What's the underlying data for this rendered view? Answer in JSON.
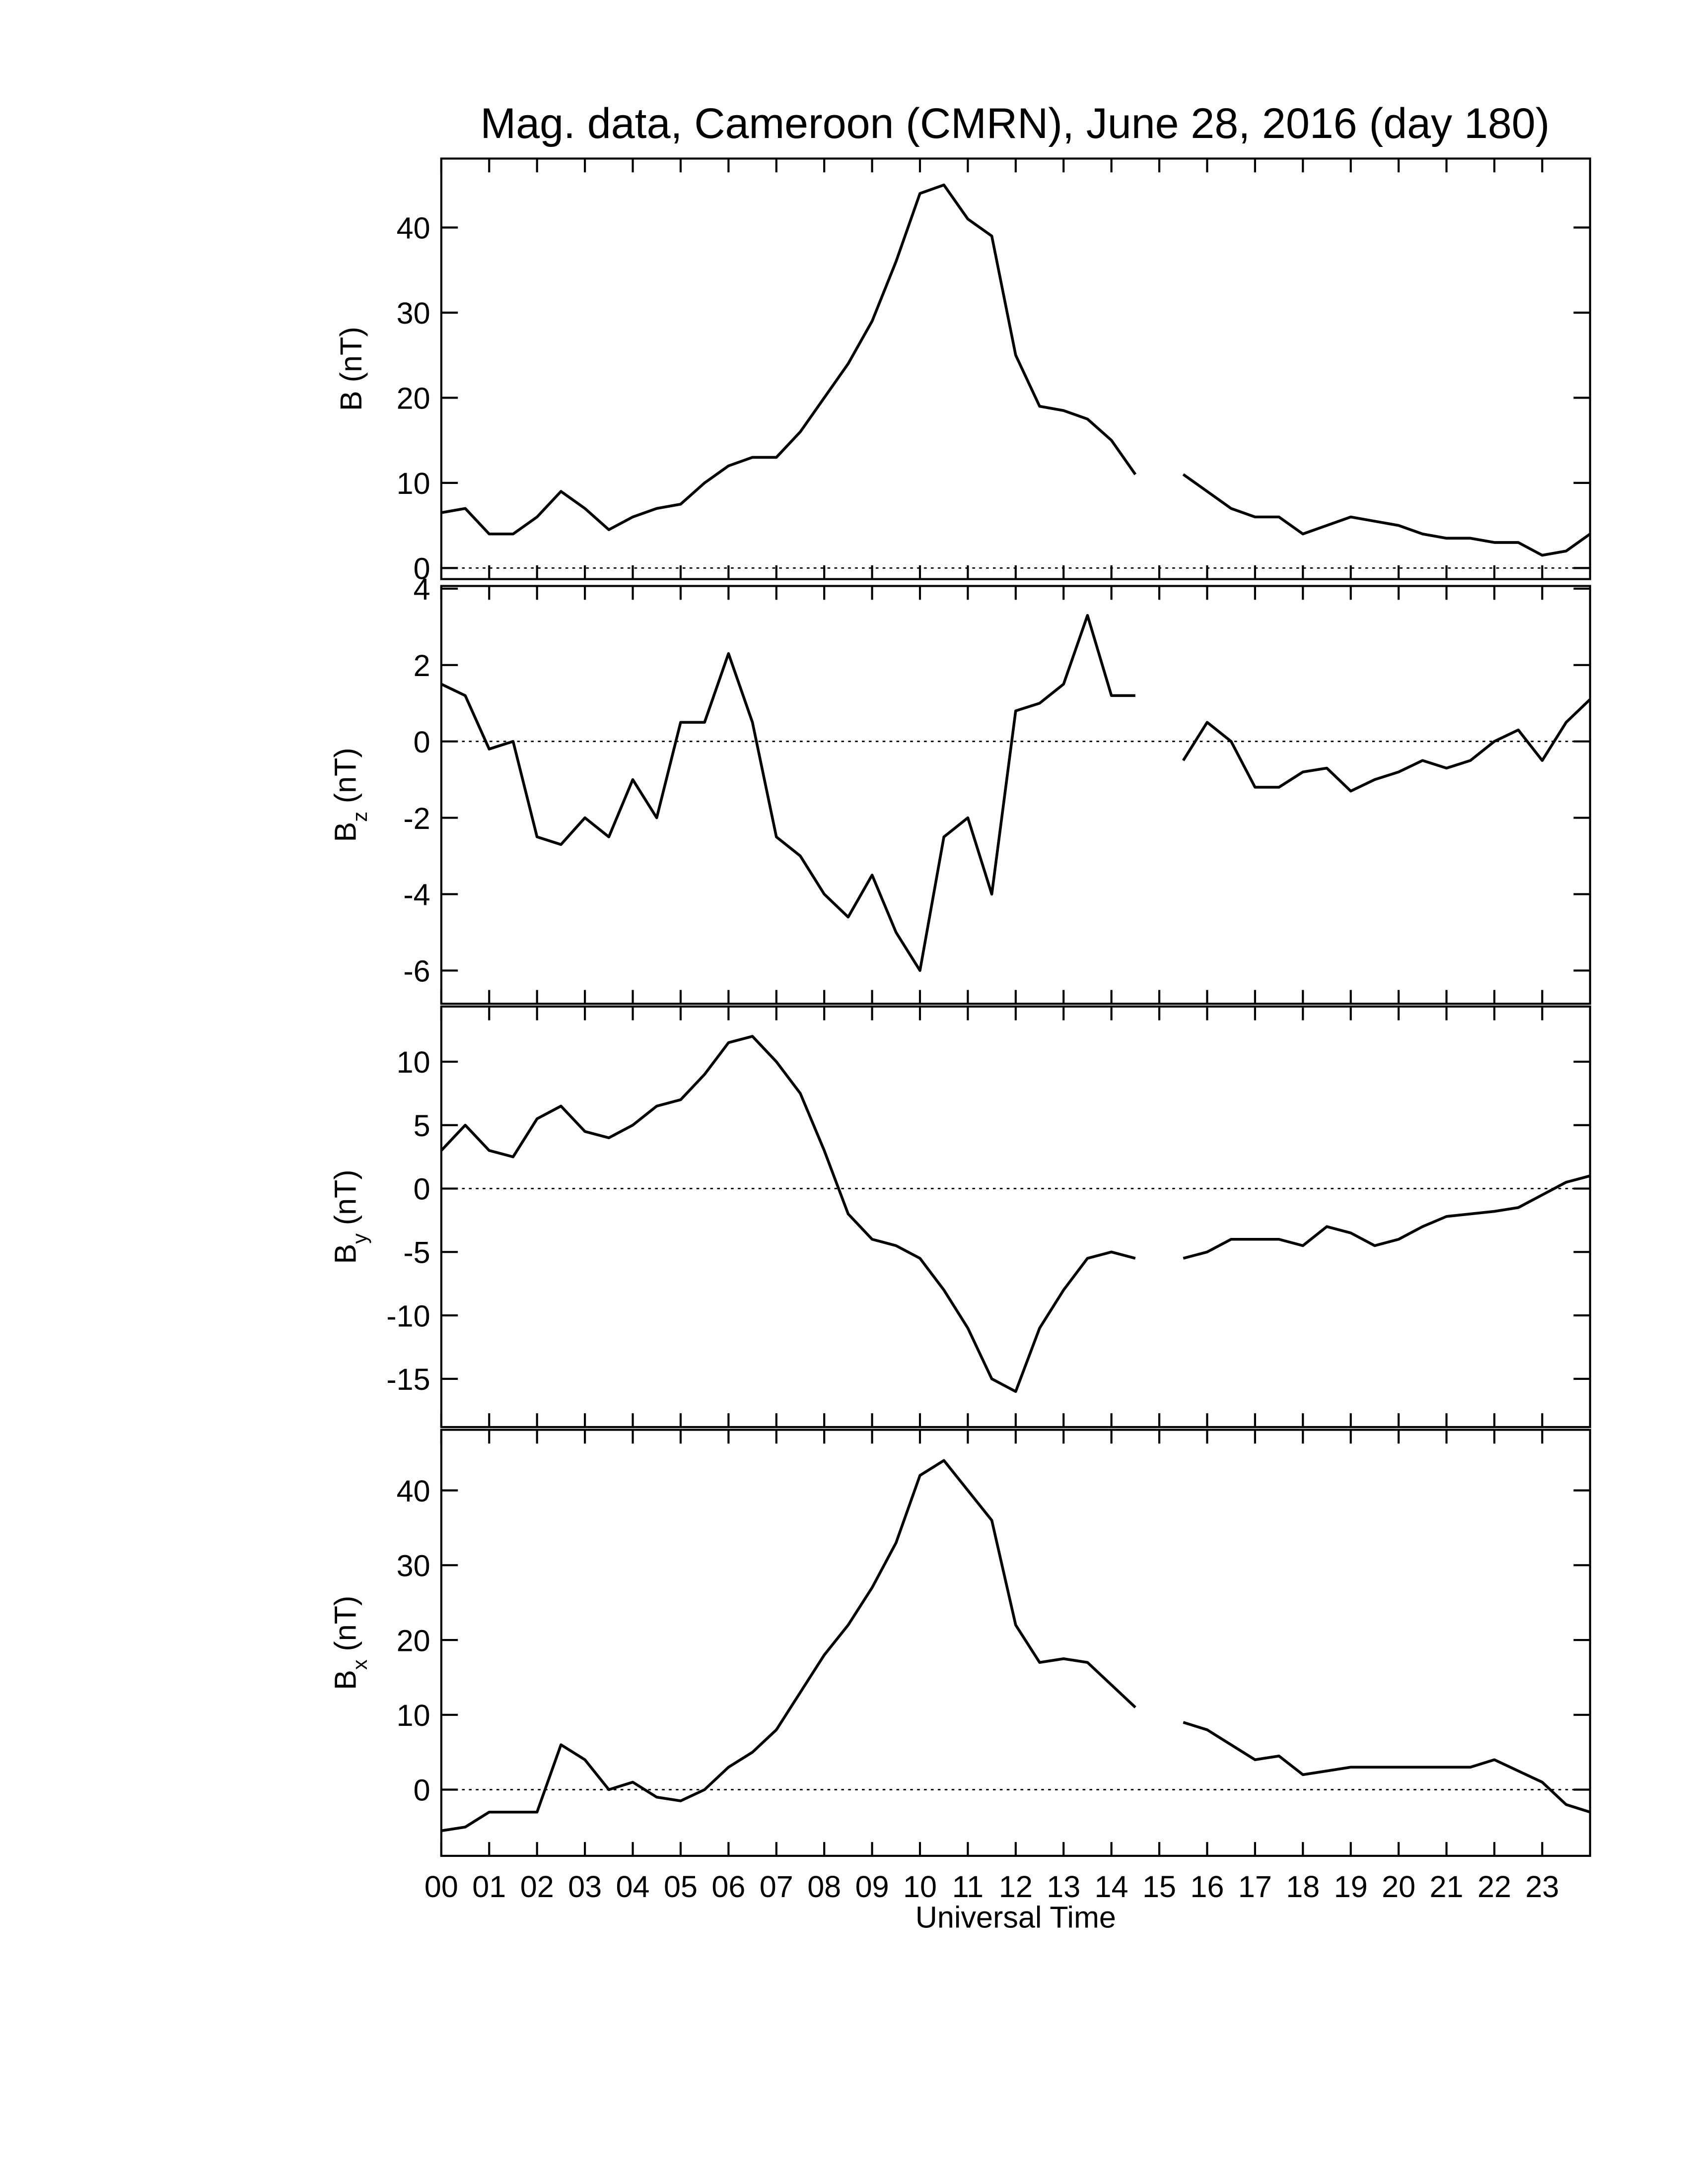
{
  "chart_data": [
    {
      "type": "line",
      "title": "Mag. data, Cameroon (CMRN), June 28, 2016 (day 180)",
      "ylabel": "B (nT)",
      "xlim": [
        0,
        24
      ],
      "ylim": [
        -1.3,
        48.1
      ],
      "yticks": [
        0,
        10,
        20,
        30,
        40
      ],
      "zero_line": true,
      "x": [
        0,
        0.5,
        1,
        1.5,
        2,
        2.5,
        3,
        3.5,
        4,
        4.5,
        5,
        5.5,
        6,
        6.5,
        7,
        7.5,
        8,
        8.5,
        9,
        9.5,
        10,
        10.5,
        11,
        11.5,
        12,
        12.5,
        13,
        13.5,
        14,
        14.5,
        15,
        15.5,
        16,
        16.5,
        17,
        17.5,
        18,
        18.5,
        19,
        19.5,
        20,
        20.5,
        21,
        21.5,
        22,
        22.5,
        23,
        23.5,
        24
      ],
      "series": [
        {
          "color": "#000000",
          "values": [
            6.5,
            7,
            4,
            4,
            6,
            9,
            7,
            4.5,
            6,
            7,
            7.5,
            10,
            12,
            13,
            13,
            16,
            20,
            24,
            29,
            36,
            44,
            45,
            41,
            39,
            25,
            19,
            18.5,
            17.5,
            15,
            11,
            null,
            11,
            9,
            7,
            6,
            6,
            4,
            5,
            6,
            5.5,
            5,
            4,
            3.5,
            3.5,
            3,
            3,
            1.5,
            2,
            4
          ]
        }
      ]
    },
    {
      "type": "line",
      "ylabel": "B",
      "ylabel_sub": "z",
      "ylabel_unit": "(nT)",
      "xlim": [
        0,
        24
      ],
      "ylim": [
        -6.87,
        4.07
      ],
      "yticks": [
        -6,
        -4,
        -2,
        0,
        2,
        4
      ],
      "zero_line": true,
      "x": [
        0,
        0.5,
        1,
        1.5,
        2,
        2.5,
        3,
        3.5,
        4,
        4.5,
        5,
        5.5,
        6,
        6.5,
        7,
        7.5,
        8,
        8.5,
        9,
        9.5,
        10,
        10.5,
        11,
        11.5,
        12,
        12.5,
        13,
        13.5,
        14,
        14.5,
        15,
        15.5,
        16,
        16.5,
        17,
        17.5,
        18,
        18.5,
        19,
        19.5,
        20,
        20.5,
        21,
        21.5,
        22,
        22.5,
        23,
        23.5,
        24
      ],
      "series": [
        {
          "color": "#000000",
          "values": [
            1.5,
            1.2,
            -0.2,
            0,
            -2.5,
            -2.7,
            -2,
            -2.5,
            -1,
            -2,
            0.5,
            0.5,
            2.3,
            0.5,
            -2.5,
            -3,
            -4,
            -4.6,
            -3.5,
            -5,
            -6,
            -2.5,
            -2,
            -4,
            0.8,
            1,
            1.5,
            3.3,
            1.2,
            1.2,
            null,
            -0.5,
            0.5,
            0,
            -1.2,
            -1.2,
            -0.8,
            -0.7,
            -1.3,
            -1,
            -0.8,
            -0.5,
            -0.7,
            -0.5,
            0,
            0.3,
            -0.5,
            0.5,
            1.1
          ]
        }
      ]
    },
    {
      "type": "line",
      "ylabel": "B",
      "ylabel_sub": "y",
      "ylabel_unit": "(nT)",
      "xlim": [
        0,
        24
      ],
      "ylim": [
        -18.8,
        14.35
      ],
      "yticks": [
        -15,
        -10,
        -5,
        0,
        5,
        10
      ],
      "zero_line": true,
      "x": [
        0,
        0.5,
        1,
        1.5,
        2,
        2.5,
        3,
        3.5,
        4,
        4.5,
        5,
        5.5,
        6,
        6.5,
        7,
        7.5,
        8,
        8.5,
        9,
        9.5,
        10,
        10.5,
        11,
        11.5,
        12,
        12.5,
        13,
        13.5,
        14,
        14.5,
        15,
        15.5,
        16,
        16.5,
        17,
        17.5,
        18,
        18.5,
        19,
        19.5,
        20,
        20.5,
        21,
        21.5,
        22,
        22.5,
        23,
        23.5,
        24
      ],
      "series": [
        {
          "color": "#000000",
          "values": [
            3,
            5,
            3,
            2.5,
            5.5,
            6.5,
            4.5,
            4,
            5,
            6.5,
            7,
            9,
            11.5,
            12,
            10,
            7.5,
            3,
            -2,
            -4,
            -4.5,
            -5.5,
            -8,
            -11,
            -15,
            -16,
            -11,
            -8,
            -5.5,
            -5,
            -5.5,
            null,
            -5.5,
            -5,
            -4,
            -4,
            -4,
            -4.5,
            -3,
            -3.5,
            -4.5,
            -4,
            -3,
            -2.2,
            -2,
            -1.8,
            -1.5,
            -0.5,
            0.5,
            1
          ]
        }
      ]
    },
    {
      "type": "line",
      "ylabel": "B",
      "ylabel_sub": "x",
      "ylabel_unit": "(nT)",
      "xlabel": "Universal Time",
      "xlim": [
        0,
        24
      ],
      "ylim": [
        -8.85,
        48.1
      ],
      "yticks": [
        0,
        10,
        20,
        30,
        40
      ],
      "zero_line": true,
      "xticks": [
        {
          "value": 0,
          "label": "00"
        },
        {
          "value": 1,
          "label": "01"
        },
        {
          "value": 2,
          "label": "02"
        },
        {
          "value": 3,
          "label": "03"
        },
        {
          "value": 4,
          "label": "04"
        },
        {
          "value": 5,
          "label": "05"
        },
        {
          "value": 6,
          "label": "06"
        },
        {
          "value": 7,
          "label": "07"
        },
        {
          "value": 8,
          "label": "08"
        },
        {
          "value": 9,
          "label": "09"
        },
        10,
        11,
        12,
        13,
        14,
        15,
        16,
        17,
        18,
        19,
        20,
        21,
        22,
        23
      ],
      "x": [
        0,
        0.5,
        1,
        1.5,
        2,
        2.5,
        3,
        3.5,
        4,
        4.5,
        5,
        5.5,
        6,
        6.5,
        7,
        7.5,
        8,
        8.5,
        9,
        9.5,
        10,
        10.5,
        11,
        11.5,
        12,
        12.5,
        13,
        13.5,
        14,
        14.5,
        15,
        15.5,
        16,
        16.5,
        17,
        17.5,
        18,
        18.5,
        19,
        19.5,
        20,
        20.5,
        21,
        21.5,
        22,
        22.5,
        23,
        23.5,
        24
      ],
      "series": [
        {
          "color": "#000000",
          "values": [
            -5.5,
            -5,
            -3,
            -3,
            -3,
            6,
            4,
            0,
            1,
            -1,
            -1.5,
            0,
            3,
            5,
            8,
            13,
            18,
            22,
            27,
            33,
            42,
            44,
            40,
            36,
            22,
            17,
            17.5,
            17,
            14,
            11,
            null,
            9,
            8,
            6,
            4,
            4.5,
            2,
            2.5,
            3,
            3,
            3,
            3,
            3,
            3,
            4,
            2.5,
            1,
            -2,
            -3
          ]
        }
      ]
    }
  ]
}
